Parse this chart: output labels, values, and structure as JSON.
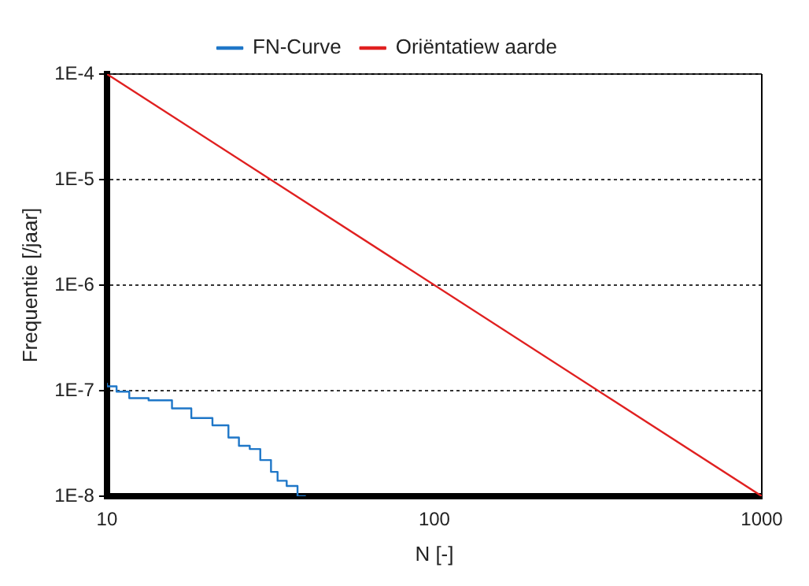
{
  "chart_data": {
    "type": "line",
    "xlabel": "N [-]",
    "ylabel": "Frequentie [/jaar]",
    "log": "xy",
    "grid": "y",
    "legend": "top",
    "marker": "none",
    "xlim": [
      10,
      1000
    ],
    "xticks": [
      10,
      100,
      1000
    ],
    "ylim": [
      1e-08,
      0.0001
    ],
    "yticks": [
      {
        "value": 1e-08,
        "label": "1E-8"
      },
      {
        "value": 1e-07,
        "label": "1E-7"
      },
      {
        "value": 1e-06,
        "label": "1E-6"
      },
      {
        "value": 1e-05,
        "label": "1E-5"
      },
      {
        "value": 0.0001,
        "label": "1E-4"
      }
    ],
    "series": [
      {
        "name": "FN-Curve",
        "type": "step",
        "color": "#1f77c8",
        "x": [
          10,
          10.7,
          11.7,
          13.4,
          15.8,
          18.1,
          21,
          23.5,
          25.3,
          27.3,
          29.4,
          31.7,
          33.2,
          35.4,
          38.2,
          40.5
        ],
        "values": [
          1.18e-07,
          1.1e-07,
          9.8e-08,
          8.5e-08,
          8.1e-08,
          6.8e-08,
          5.5e-08,
          4.7e-08,
          3.6e-08,
          3e-08,
          2.8e-08,
          2.2e-08,
          1.7e-08,
          1.4e-08,
          1.25e-08,
          1e-08
        ]
      },
      {
        "name": "Oriëntatiew aarde",
        "type": "line",
        "color": "#e02020",
        "x": [
          10,
          1000
        ],
        "values": [
          0.0001,
          1e-08
        ]
      }
    ]
  }
}
